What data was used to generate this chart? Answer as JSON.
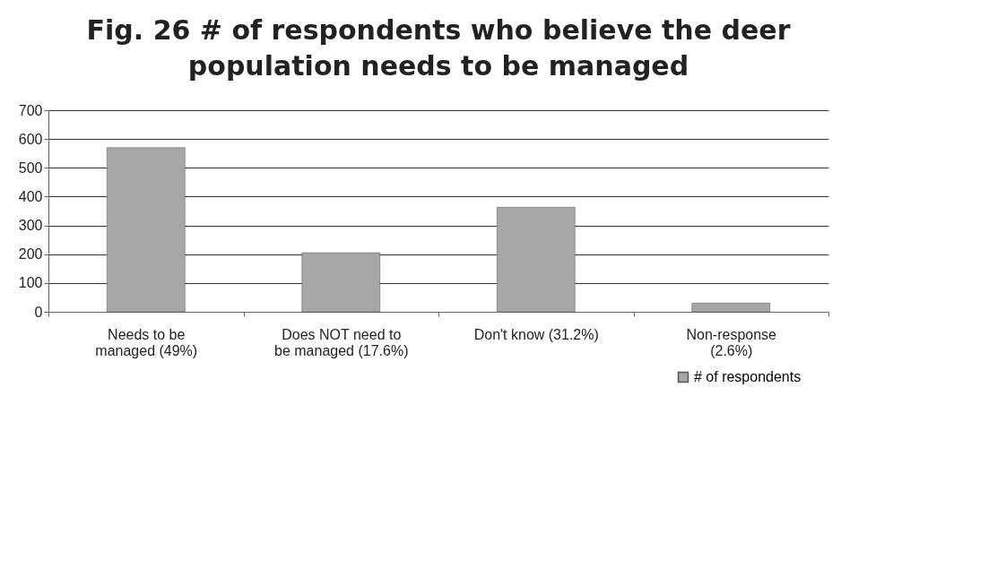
{
  "chart_data": {
    "type": "bar",
    "title": "Fig. 26 # of respondents who believe the deer population needs to be managed",
    "categories": [
      "Needs to be managed (49%)",
      "Does NOT need to be managed (17.6%)",
      "Don't know (31.2%)",
      "Non-response (2.6%)"
    ],
    "series": [
      {
        "name": "# of respondents",
        "color": "#a6a6a6",
        "values": [
          570,
          205,
          363,
          30
        ]
      }
    ],
    "ylim": [
      0,
      700
    ],
    "yticks": [
      0,
      100,
      200,
      300,
      400,
      500,
      600,
      700
    ],
    "grid": "y",
    "legend": "bottom right"
  }
}
